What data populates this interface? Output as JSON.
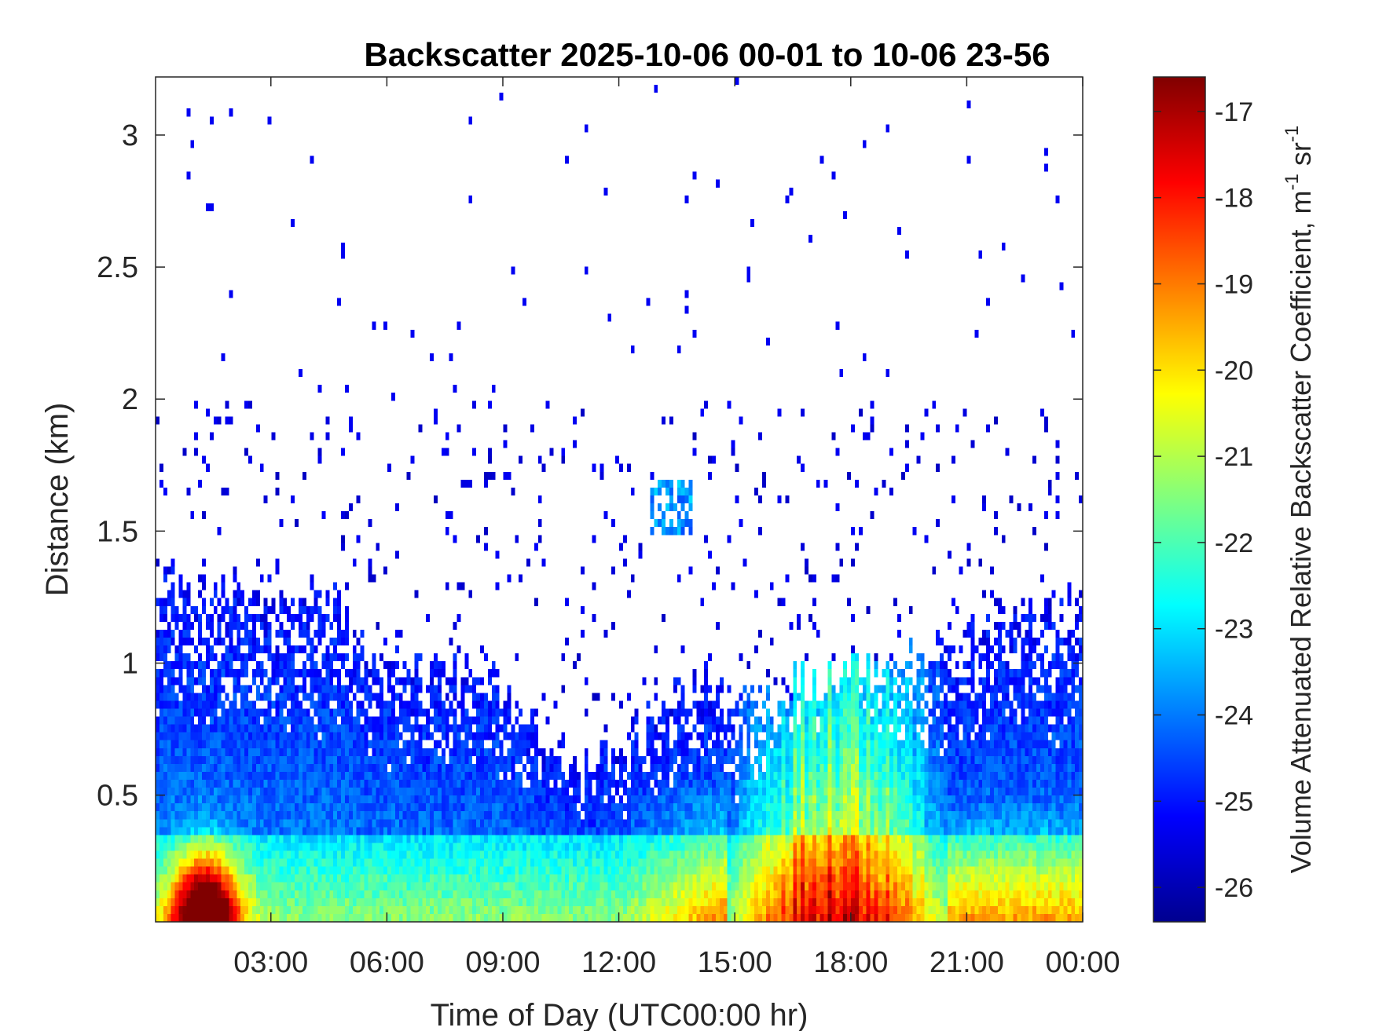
{
  "chart_data": {
    "type": "heatmap",
    "title": "Backscatter 2025-10-06 00-01 to 10-06 23-56",
    "xlabel": "Time of Day (UTC00:00 hr)",
    "ylabel": "Distance (km)",
    "xlim": [
      0.017,
      24.0
    ],
    "ylim": [
      0.02,
      3.22
    ],
    "x_ticks": [
      3,
      6,
      9,
      12,
      15,
      18,
      21,
      24
    ],
    "x_tick_labels": [
      "03:00",
      "06:00",
      "09:00",
      "12:00",
      "15:00",
      "18:00",
      "21:00",
      "00:00"
    ],
    "y_ticks": [
      0.5,
      1,
      1.5,
      2,
      2.5,
      3
    ],
    "y_tick_labels": [
      "0.5",
      "1",
      "1.5",
      "2",
      "2.5",
      "3"
    ],
    "colorbar": {
      "label_main": "Volume Attenuated Relative Backscatter Coefficient, m",
      "label_exp1": "-1",
      "label_mid": " sr",
      "label_exp2": "-1",
      "clim": [
        -26.4,
        -16.6
      ],
      "ticks": [
        -26,
        -25,
        -24,
        -23,
        -22,
        -21,
        -20,
        -19,
        -18,
        -17
      ],
      "tick_labels": [
        "-26",
        "-25",
        "-24",
        "-23",
        "-22",
        "-21",
        "-20",
        "-19",
        "-18",
        "-17"
      ],
      "colormap": "jet"
    },
    "grid": false,
    "nx": 240,
    "ny": 107,
    "field_description_note_free": true,
    "layers": {
      "surface_plume": {
        "center_hour": 1.3,
        "value_peak": -17.0,
        "top_km": 0.3
      },
      "boundary_layer_top_km": [
        [
          0.0,
          1.35
        ],
        [
          2.0,
          1.3
        ],
        [
          4.5,
          1.25
        ],
        [
          5.5,
          1.05
        ],
        [
          7.0,
          1.0
        ],
        [
          9.0,
          0.95
        ],
        [
          10.0,
          0.75
        ],
        [
          11.0,
          0.6
        ],
        [
          12.5,
          0.75
        ],
        [
          14.0,
          0.95
        ],
        [
          16.0,
          0.9
        ],
        [
          18.0,
          1.0
        ],
        [
          20.0,
          1.05
        ],
        [
          21.5,
          1.15
        ],
        [
          24.0,
          1.25
        ]
      ],
      "warm_core_hours": [
        14.8,
        20.5
      ],
      "elevated_cloud": {
        "hour": 13.4,
        "km": 1.6,
        "value": -23.0
      }
    }
  }
}
